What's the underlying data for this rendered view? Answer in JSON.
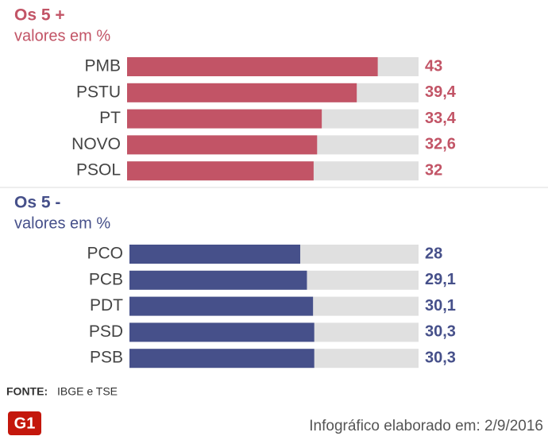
{
  "chart_data": [
    {
      "type": "bar",
      "orientation": "horizontal",
      "title": "Os 5 +",
      "subtitle": "valores em %",
      "categories": [
        "PMB",
        "PSTU",
        "PT",
        "NOVO",
        "PSOL"
      ],
      "values": [
        43,
        39.4,
        33.4,
        32.6,
        32
      ],
      "value_labels": [
        "43",
        "39,4",
        "33,4",
        "32,6",
        "32"
      ],
      "color": "#c25466",
      "track_color": "#e0e0e0",
      "xlim": [
        0,
        50
      ]
    },
    {
      "type": "bar",
      "orientation": "horizontal",
      "title": "Os 5 -",
      "subtitle": "valores em %",
      "categories": [
        "PCO",
        "PCB",
        "PDT",
        "PSD",
        "PSB"
      ],
      "values": [
        28,
        29.1,
        30.1,
        30.3,
        30.3
      ],
      "value_labels": [
        "28",
        "29,1",
        "30,1",
        "30,3",
        "30,3"
      ],
      "color": "#46508a",
      "track_color": "#e0e0e0",
      "xlim": [
        0,
        47.4
      ]
    }
  ],
  "footer": {
    "source_label": "FONTE:",
    "source": "IBGE e TSE",
    "logo": "G1",
    "credit": "Infográfico elaborado em: 2/9/2016"
  }
}
